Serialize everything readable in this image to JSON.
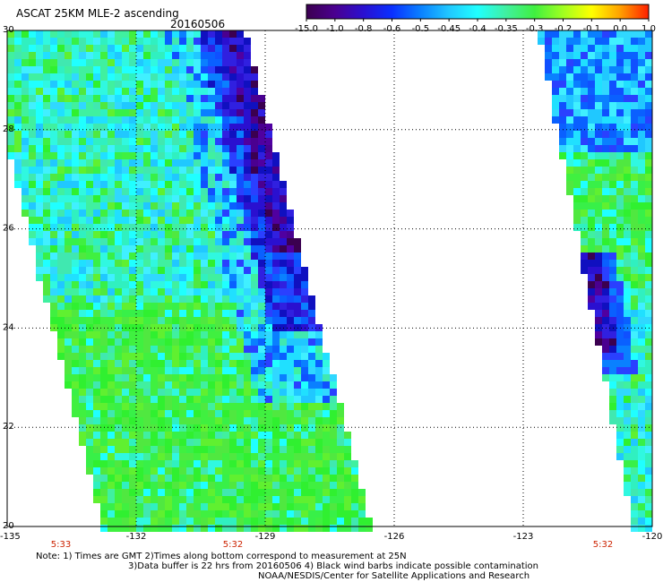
{
  "header": {
    "title": "ASCAT 25KM MLE-2 ascending",
    "date": "20160506"
  },
  "colorbar": {
    "labels": [
      "-15.0",
      "-1.0",
      "-0.8",
      "-0.6",
      "-0.5",
      "-0.45",
      "-0.4",
      "-0.35",
      "-0.3",
      "-0.2",
      "-0.1",
      "0.0",
      "1.0"
    ],
    "colors": [
      "#3b0050",
      "#4a0090",
      "#2a10d0",
      "#0a30ff",
      "#0a80ff",
      "#20c8ff",
      "#20ffff",
      "#40f0a0",
      "#40f040",
      "#a0ff20",
      "#ffff00",
      "#ffa000",
      "#ff2000"
    ]
  },
  "map": {
    "lon_labels": [
      "-135",
      "-132",
      "-129",
      "-126",
      "-123",
      "-120"
    ],
    "lat_labels": [
      "30",
      "28",
      "26",
      "24",
      "22",
      "20"
    ],
    "time_labels": [
      "5:33",
      "5:32",
      "5:32"
    ],
    "time_color": "#cc2200",
    "background": "#ffffff",
    "grid_style": "dotted"
  },
  "notes": {
    "line1": "Note: 1) Times are GMT 2)Times along bottom correspond to measurement at 25N",
    "line2": "3)Data buffer is 22 hrs from 20160506 4) Black wind barbs indicate possible contamination",
    "line3": "NOAA/NESDIS/Center for Satellite Applications and Research"
  }
}
